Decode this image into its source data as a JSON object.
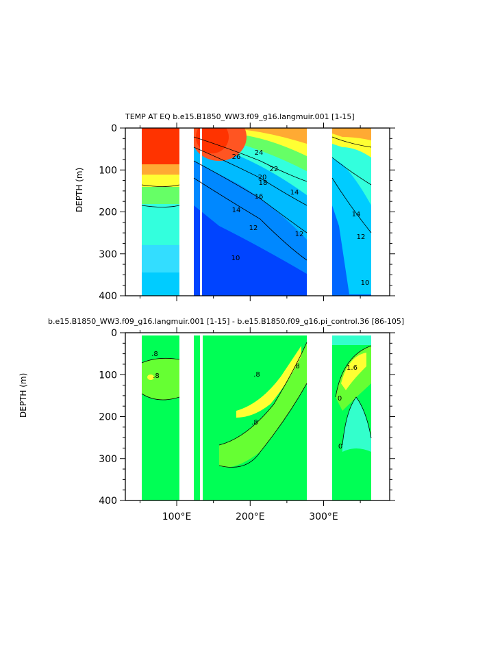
{
  "chart_data": [
    {
      "type": "heatmap",
      "title": "TEMP AT EQ   b.e15.B1850_WW3.f09_g16.langmuir.001  [1-15]",
      "ylabel": "DEPTH (m)",
      "y_ticks": [
        "0",
        "100",
        "200",
        "300",
        "400"
      ],
      "ylim": [
        400,
        0
      ],
      "xlim": [
        30,
        390
      ],
      "contour_labels": [
        "26",
        "24",
        "22",
        "20",
        "18",
        "16",
        "14",
        "14",
        "12",
        "12",
        "12",
        "10",
        "10",
        "14"
      ],
      "contour_levels": [
        10,
        12,
        14,
        16,
        18,
        20,
        22,
        24,
        26
      ],
      "colors": {
        "warmest": "#ff3300",
        "warm": "#ff9933",
        "mid": "#ffff33",
        "cool": "#33ffcc",
        "cold": "#0066ff",
        "coldest": "#0000cc"
      }
    },
    {
      "type": "heatmap",
      "title": "b.e15.B1850_WW3.f09_g16.langmuir.001  [1-15]  -  b.e15.B1850.f09_g16.pi_control.36  [86-105]",
      "ylabel": "DEPTH (m)",
      "xlabel": "",
      "x_ticks": [
        "100°E",
        "200°E",
        "300°E"
      ],
      "x_tick_values": [
        100,
        200,
        300
      ],
      "y_ticks": [
        "0",
        "100",
        "200",
        "300",
        "400"
      ],
      "ylim": [
        400,
        0
      ],
      "xlim": [
        30,
        390
      ],
      "contour_labels": [
        ".8",
        ".8",
        ".8",
        ".8",
        ".8",
        "1.6",
        "0",
        "0"
      ],
      "colors": {
        "near_zero": "#00ff55",
        "positive": "#99ff33",
        "high": "#ffff33",
        "negative": "#33ffcc"
      }
    }
  ]
}
